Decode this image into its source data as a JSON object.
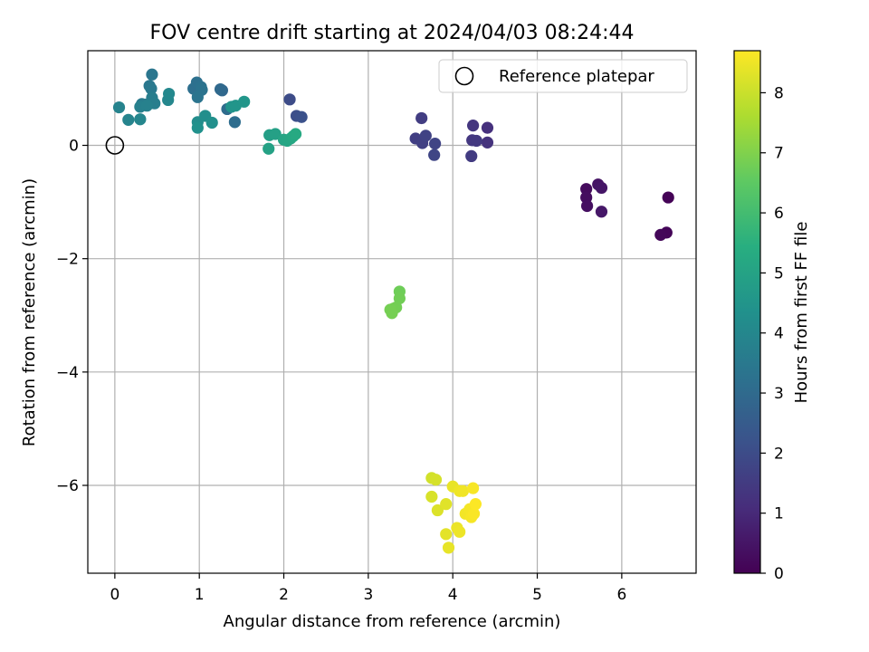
{
  "chart_data": {
    "type": "scatter",
    "title": "FOV centre drift starting at 2024/04/03 08:24:44",
    "xlabel": "Angular distance from reference (arcmin)",
    "ylabel": "Rotation from reference (arcmin)",
    "xlim": [
      -0.32,
      6.88
    ],
    "ylim": [
      -7.55,
      1.67
    ],
    "xticks": [
      0,
      1,
      2,
      3,
      4,
      5,
      6
    ],
    "yticks": [
      -6,
      -4,
      -2,
      0
    ],
    "grid": true,
    "legend": {
      "placement": "top-right",
      "entries": [
        "Reference platepar"
      ]
    },
    "reference_point": {
      "x": 0,
      "y": 0,
      "label": "Reference platepar"
    },
    "colorbar": {
      "label": "Hours from first FF file",
      "colormap": "viridis",
      "range": [
        0,
        8.7
      ],
      "ticks": [
        0,
        1,
        2,
        3,
        4,
        5,
        6,
        7,
        8
      ]
    },
    "points": [
      {
        "x": 6.55,
        "y": -0.92,
        "t": 0.05
      },
      {
        "x": 6.53,
        "y": -1.54,
        "t": 0.1
      },
      {
        "x": 6.46,
        "y": -1.58,
        "t": 0.15
      },
      {
        "x": 5.58,
        "y": -0.77,
        "t": 0.25
      },
      {
        "x": 5.58,
        "y": -0.92,
        "t": 0.3
      },
      {
        "x": 5.59,
        "y": -1.07,
        "t": 0.35
      },
      {
        "x": 5.72,
        "y": -0.69,
        "t": 0.45
      },
      {
        "x": 5.76,
        "y": -0.75,
        "t": 0.5
      },
      {
        "x": 5.76,
        "y": -1.17,
        "t": 0.55
      },
      {
        "x": 4.41,
        "y": 0.31,
        "t": 1.2
      },
      {
        "x": 4.41,
        "y": 0.05,
        "t": 1.25
      },
      {
        "x": 4.24,
        "y": 0.35,
        "t": 1.35
      },
      {
        "x": 4.23,
        "y": 0.09,
        "t": 1.4
      },
      {
        "x": 4.28,
        "y": 0.08,
        "t": 1.45
      },
      {
        "x": 4.22,
        "y": -0.19,
        "t": 1.5
      },
      {
        "x": 3.63,
        "y": 0.48,
        "t": 1.55
      },
      {
        "x": 3.56,
        "y": 0.12,
        "t": 1.6
      },
      {
        "x": 3.64,
        "y": 0.04,
        "t": 1.65
      },
      {
        "x": 3.68,
        "y": 0.17,
        "t": 1.7
      },
      {
        "x": 3.79,
        "y": 0.03,
        "t": 1.75
      },
      {
        "x": 3.78,
        "y": -0.17,
        "t": 1.8
      },
      {
        "x": 2.07,
        "y": 0.81,
        "t": 2.0
      },
      {
        "x": 2.15,
        "y": 0.52,
        "t": 2.1
      },
      {
        "x": 2.21,
        "y": 0.5,
        "t": 2.15
      },
      {
        "x": 1.27,
        "y": 0.97,
        "t": 2.9
      },
      {
        "x": 1.25,
        "y": 0.99,
        "t": 2.95
      },
      {
        "x": 1.33,
        "y": 0.64,
        "t": 3.05
      },
      {
        "x": 1.42,
        "y": 0.41,
        "t": 3.1
      },
      {
        "x": 0.93,
        "y": 1.0,
        "t": 3.15
      },
      {
        "x": 0.97,
        "y": 1.11,
        "t": 3.2
      },
      {
        "x": 1.02,
        "y": 1.03,
        "t": 3.25
      },
      {
        "x": 1.03,
        "y": 0.98,
        "t": 3.3
      },
      {
        "x": 0.98,
        "y": 0.85,
        "t": 3.35
      },
      {
        "x": 0.44,
        "y": 1.25,
        "t": 3.4
      },
      {
        "x": 0.41,
        "y": 1.05,
        "t": 3.45
      },
      {
        "x": 0.43,
        "y": 1.0,
        "t": 3.5
      },
      {
        "x": 0.32,
        "y": 0.73,
        "t": 3.55
      },
      {
        "x": 0.36,
        "y": 0.72,
        "t": 3.6
      },
      {
        "x": 0.44,
        "y": 0.84,
        "t": 3.65
      },
      {
        "x": 0.47,
        "y": 0.74,
        "t": 3.7
      },
      {
        "x": 0.3,
        "y": 0.68,
        "t": 3.75
      },
      {
        "x": 0.38,
        "y": 0.7,
        "t": 3.8
      },
      {
        "x": 0.05,
        "y": 0.67,
        "t": 3.85
      },
      {
        "x": 0.16,
        "y": 0.45,
        "t": 3.9
      },
      {
        "x": 0.3,
        "y": 0.46,
        "t": 3.95
      },
      {
        "x": 0.63,
        "y": 0.8,
        "t": 4.0
      },
      {
        "x": 0.64,
        "y": 0.91,
        "t": 4.05
      },
      {
        "x": 0.98,
        "y": 0.41,
        "t": 4.2
      },
      {
        "x": 1.07,
        "y": 0.52,
        "t": 4.25
      },
      {
        "x": 1.15,
        "y": 0.4,
        "t": 4.3
      },
      {
        "x": 0.98,
        "y": 0.31,
        "t": 4.35
      },
      {
        "x": 1.38,
        "y": 0.68,
        "t": 4.45
      },
      {
        "x": 1.43,
        "y": 0.7,
        "t": 4.5
      },
      {
        "x": 1.53,
        "y": 0.77,
        "t": 4.55
      },
      {
        "x": 1.83,
        "y": 0.18,
        "t": 4.85
      },
      {
        "x": 1.9,
        "y": 0.2,
        "t": 4.9
      },
      {
        "x": 1.82,
        "y": -0.06,
        "t": 4.95
      },
      {
        "x": 2.0,
        "y": 0.1,
        "t": 5.05
      },
      {
        "x": 2.04,
        "y": 0.08,
        "t": 5.1
      },
      {
        "x": 2.08,
        "y": 0.12,
        "t": 5.15
      },
      {
        "x": 2.11,
        "y": 0.16,
        "t": 5.2
      },
      {
        "x": 2.14,
        "y": 0.2,
        "t": 5.25
      },
      {
        "x": 3.37,
        "y": -2.58,
        "t": 6.75
      },
      {
        "x": 3.37,
        "y": -2.7,
        "t": 6.78
      },
      {
        "x": 3.33,
        "y": -2.86,
        "t": 6.8
      },
      {
        "x": 3.3,
        "y": -2.88,
        "t": 6.82
      },
      {
        "x": 3.26,
        "y": -2.9,
        "t": 6.84
      },
      {
        "x": 3.28,
        "y": -2.96,
        "t": 6.86
      },
      {
        "x": 3.75,
        "y": -5.87,
        "t": 8.1
      },
      {
        "x": 3.8,
        "y": -5.9,
        "t": 8.15
      },
      {
        "x": 3.75,
        "y": -6.2,
        "t": 8.2
      },
      {
        "x": 3.82,
        "y": -6.44,
        "t": 8.25
      },
      {
        "x": 3.92,
        "y": -6.33,
        "t": 8.3
      },
      {
        "x": 3.92,
        "y": -6.86,
        "t": 8.35
      },
      {
        "x": 3.95,
        "y": -7.1,
        "t": 8.4
      },
      {
        "x": 4.0,
        "y": -6.02,
        "t": 8.42
      },
      {
        "x": 4.05,
        "y": -6.75,
        "t": 8.45
      },
      {
        "x": 4.08,
        "y": -6.82,
        "t": 8.48
      },
      {
        "x": 4.08,
        "y": -6.1,
        "t": 8.5
      },
      {
        "x": 4.12,
        "y": -6.1,
        "t": 8.52
      },
      {
        "x": 4.15,
        "y": -6.5,
        "t": 8.55
      },
      {
        "x": 4.2,
        "y": -6.42,
        "t": 8.58
      },
      {
        "x": 4.22,
        "y": -6.56,
        "t": 8.6
      },
      {
        "x": 4.24,
        "y": -6.05,
        "t": 8.62
      },
      {
        "x": 4.25,
        "y": -6.5,
        "t": 8.65
      },
      {
        "x": 4.27,
        "y": -6.33,
        "t": 8.68
      }
    ]
  }
}
